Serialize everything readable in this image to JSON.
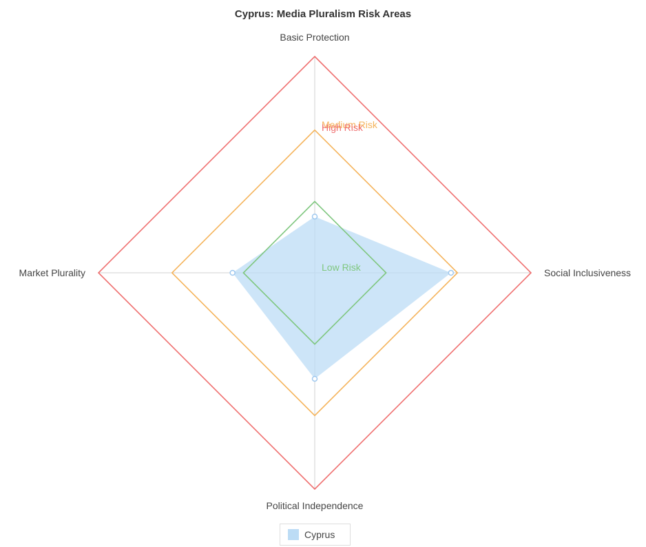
{
  "chart_data": {
    "type": "radar",
    "title": "Cyprus: Media Pluralism Risk Areas",
    "axes": [
      "Basic Protection",
      "Social Inclusiveness",
      "Political Independence",
      "Market Plurality"
    ],
    "range": [
      0,
      100
    ],
    "thresholds": [
      {
        "label": "Low Risk",
        "value": 33,
        "color": "#7fc77f"
      },
      {
        "label": "Medium Risk",
        "value": 66,
        "color": "#f5b35a"
      },
      {
        "label": "High Risk",
        "value": 100,
        "color": "#ef6f6f"
      }
    ],
    "series": [
      {
        "name": "Cyprus",
        "values": [
          26,
          63,
          49,
          38
        ],
        "color": "#bcdcf5"
      }
    ],
    "legend_position": "bottom"
  }
}
